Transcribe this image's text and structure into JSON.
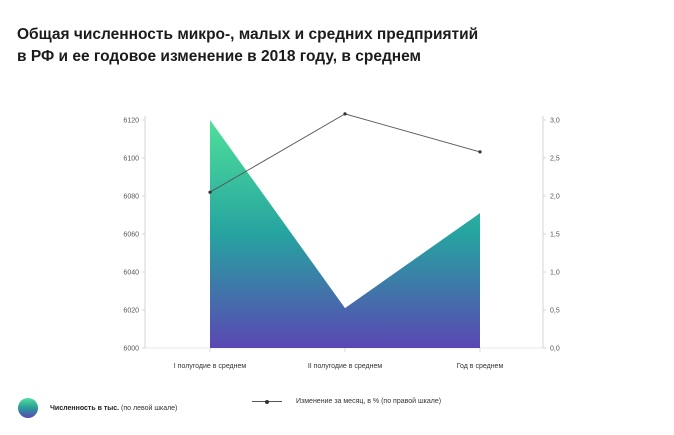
{
  "title_lines": [
    "Общая численность микро-, малых и средних предприятий",
    "в РФ и ее годовое изменение в 2018 году, в среднем"
  ],
  "chart_data": {
    "type": "area",
    "categories": [
      "I полугодие в среднем",
      "II полугодие в среднем",
      "Год в среднем"
    ],
    "series": [
      {
        "name": "Численность в тыс. (по левой шкале)",
        "type": "area",
        "axis": "left",
        "values": [
          6120,
          6021,
          6071
        ]
      },
      {
        "name": "Изменение за месяц, в % (по правой шкале)",
        "type": "line",
        "axis": "right",
        "values": [
          2.05,
          3.08,
          2.58
        ]
      }
    ],
    "left_axis": {
      "ylim": [
        6000,
        6120
      ],
      "ticks": [
        "6000",
        "6020",
        "6040",
        "6060",
        "6080",
        "6100",
        "6120"
      ]
    },
    "right_axis": {
      "ylim": [
        0,
        3.0
      ],
      "ticks": [
        "0,0",
        "0,5",
        "1,0",
        "1,5",
        "2,0",
        "2,5",
        "3,0"
      ]
    },
    "colors": {
      "area_top": "#4fe09a",
      "area_mid": "#26a3a0",
      "area_bottom": "#5a47b3",
      "line": "#555555",
      "axis": "#cccccc"
    },
    "legend_position": "bottom-left"
  },
  "legend": {
    "area_label_bold": "Численность в тыс.",
    "area_label_rest": "(по левой шкале)",
    "line_label": "Изменение за месяц, в % (по правой шкале)"
  }
}
